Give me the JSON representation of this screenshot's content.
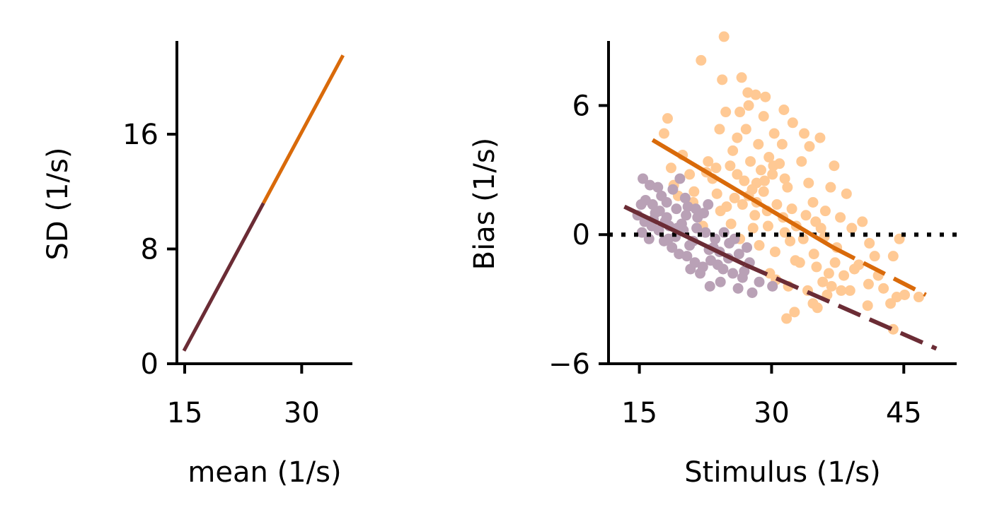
{
  "chart_data": [
    {
      "type": "line",
      "xlabel": "mean (1/s)",
      "ylabel": "SD (1/s)",
      "xlim": [
        14,
        36.5
      ],
      "ylim": [
        0,
        22.5
      ],
      "xticks": [
        15,
        30
      ],
      "yticks": [
        0,
        8,
        16
      ],
      "grid": false,
      "series": [
        {
          "color": "#6b2c35",
          "points": [
            [
              14.9,
              0.9
            ],
            [
              25.1,
              11.2
            ]
          ]
        },
        {
          "color": "#d96a0a",
          "points": [
            [
              25.1,
              11.2
            ],
            [
              35.3,
              21.5
            ]
          ]
        }
      ]
    },
    {
      "type": "scatter",
      "xlabel": "Stimulus (1/s)",
      "ylabel": "Bias (1/s)",
      "xlim": [
        11.5,
        51
      ],
      "ylim": [
        -6,
        9
      ],
      "xticks": [
        15,
        30,
        45
      ],
      "yticks": [
        -6,
        0,
        6
      ],
      "grid": false,
      "reference_line": {
        "y": 0,
        "style": "dotted",
        "color": "#000000"
      },
      "colors": {
        "light_orange": "#ffc994",
        "dark_orange": "#d96a0a",
        "light_purple": "#b9a1b6",
        "dark_purple": "#6b2c35"
      },
      "series": [
        {
          "color": "#ffc994",
          "points": [
            [
              24.6,
              9.2
            ],
            [
              22,
              8.1
            ],
            [
              24.4,
              7.2
            ],
            [
              26.6,
              7.3
            ],
            [
              27.3,
              6.6
            ],
            [
              28.2,
              6.5
            ],
            [
              29.3,
              6.4
            ],
            [
              24.8,
              5.7
            ],
            [
              26.4,
              5.7
            ],
            [
              27.4,
              6
            ],
            [
              29.1,
              5.5
            ],
            [
              31.4,
              5.8
            ],
            [
              18.2,
              5.4
            ],
            [
              24.1,
              4.9
            ],
            [
              27.1,
              4.9
            ],
            [
              30.3,
              4.7
            ],
            [
              32.4,
              5.2
            ],
            [
              33.7,
              4.7
            ],
            [
              35.5,
              4.5
            ],
            [
              17.8,
              4.7
            ],
            [
              26.1,
              4.5
            ],
            [
              28.5,
              4.2
            ],
            [
              31.2,
              4.2
            ],
            [
              34.3,
              4.1
            ],
            [
              19.9,
              3.7
            ],
            [
              22.8,
              3.4
            ],
            [
              23.7,
              3.1
            ],
            [
              25.3,
              3.2
            ],
            [
              27.6,
              3.4
            ],
            [
              30.2,
              3.2
            ],
            [
              33.4,
              3.4
            ],
            [
              37.1,
              3.2
            ],
            [
              18.6,
              3.1
            ],
            [
              20.7,
              2.8
            ],
            [
              23.3,
              2.6
            ],
            [
              26.1,
              2.8
            ],
            [
              28.3,
              2.4
            ],
            [
              29.2,
              2.5
            ],
            [
              31.5,
              2.6
            ],
            [
              34.2,
              2.4
            ],
            [
              36.7,
              2.2
            ],
            [
              18.9,
              2.3
            ],
            [
              21.2,
              2
            ],
            [
              23.8,
              1.9
            ],
            [
              25.8,
              1.7
            ],
            [
              27.4,
              1.8
            ],
            [
              29.1,
              2
            ],
            [
              30.6,
              1.4
            ],
            [
              32.3,
              1.2
            ],
            [
              34.7,
              1.5
            ],
            [
              36.1,
              1.1
            ],
            [
              38.5,
              1.9
            ],
            [
              21.1,
              1.5
            ],
            [
              24.2,
              1.1
            ],
            [
              26.7,
              1.4
            ],
            [
              28.1,
              0.9
            ],
            [
              29.5,
              1.1
            ],
            [
              31.3,
              0.8
            ],
            [
              32.8,
              0.4
            ],
            [
              35,
              0.6
            ],
            [
              37.8,
              0.8
            ],
            [
              40.3,
              0.6
            ],
            [
              22.2,
              0.4
            ],
            [
              25.4,
              0.5
            ],
            [
              27.9,
              0.3
            ],
            [
              29.6,
              0.4
            ],
            [
              31.5,
              0.1
            ],
            [
              33.6,
              -0.2
            ],
            [
              36,
              -0.1
            ],
            [
              39.1,
              0.3
            ],
            [
              41.1,
              -0.4
            ],
            [
              44.5,
              -0.2
            ],
            [
              28.6,
              -0.5
            ],
            [
              30.4,
              -0.8
            ],
            [
              32.7,
              -1.2
            ],
            [
              35.1,
              -1.5
            ],
            [
              37.2,
              -1.3
            ],
            [
              39.4,
              -1.6
            ],
            [
              41.7,
              -1
            ],
            [
              43.8,
              -1
            ],
            [
              30.5,
              -2.1
            ],
            [
              31.9,
              -2.4
            ],
            [
              34.1,
              -2.6
            ],
            [
              35.8,
              -2.2
            ],
            [
              37.9,
              -2.6
            ],
            [
              38.2,
              -1.9
            ],
            [
              41,
              -2.3
            ],
            [
              42.7,
              -2.5
            ],
            [
              32.6,
              -3.6
            ],
            [
              34.7,
              -3.2
            ],
            [
              35.2,
              -3.4
            ],
            [
              36.3,
              -2.8
            ],
            [
              38.9,
              -2.6
            ],
            [
              40.9,
              -3.3
            ],
            [
              43.5,
              -3.2
            ],
            [
              45.1,
              -2.8
            ],
            [
              31.7,
              -3.9
            ],
            [
              43.8,
              -4.4
            ],
            [
              36.5,
              -1.8
            ],
            [
              33.2,
              -1.3
            ],
            [
              29.8,
              -1.8
            ],
            [
              26.4,
              -0.2
            ],
            [
              24.9,
              1.3
            ],
            [
              27.8,
              2.1
            ],
            [
              30.9,
              3.3
            ],
            [
              22.6,
              2.9
            ],
            [
              19.4,
              1.8
            ],
            [
              33.9,
              0.9
            ],
            [
              35.6,
              0.3
            ],
            [
              37.4,
              -0.6
            ],
            [
              39.9,
              -1.4
            ],
            [
              42.1,
              -1.9
            ],
            [
              44.2,
              -2.9
            ],
            [
              46.7,
              -2.9
            ],
            [
              28.8,
              3
            ],
            [
              26.9,
              2.5
            ],
            [
              25.6,
              3.9
            ],
            [
              29.7,
              3.6
            ],
            [
              31.8,
              2.2
            ],
            [
              30.1,
              2.8
            ],
            [
              34.8,
              -0.9
            ],
            [
              36.8,
              -2.4
            ],
            [
              32.1,
              -0.3
            ],
            [
              28.3,
              1.5
            ]
          ]
        },
        {
          "color": "#b9a1b6",
          "points": [
            [
              15.4,
              2.6
            ],
            [
              16.2,
              2.3
            ],
            [
              17.1,
              2.2
            ],
            [
              18.8,
              2.1
            ],
            [
              19.6,
              2.6
            ],
            [
              20.2,
              1.7
            ],
            [
              15.7,
              1.6
            ],
            [
              16.5,
              1.4
            ],
            [
              17.3,
              1.1
            ],
            [
              18.1,
              1.5
            ],
            [
              19.2,
              1.2
            ],
            [
              20.5,
              1.3
            ],
            [
              21.6,
              0.8
            ],
            [
              22.3,
              1
            ],
            [
              14.8,
              0.9
            ],
            [
              15.6,
              0.6
            ],
            [
              16.4,
              0.4
            ],
            [
              17.2,
              0.2
            ],
            [
              18.4,
              0.4
            ],
            [
              19.1,
              -0.1
            ],
            [
              20,
              0.2
            ],
            [
              21.1,
              -0.3
            ],
            [
              22.5,
              0.1
            ],
            [
              23.6,
              -0.2
            ],
            [
              15.3,
              0.1
            ],
            [
              16.1,
              -0.2
            ],
            [
              17.8,
              -0.3
            ],
            [
              18.7,
              -0.6
            ],
            [
              19.5,
              -0.9
            ],
            [
              20.4,
              -1
            ],
            [
              21.3,
              -1.3
            ],
            [
              22.2,
              -1.5
            ],
            [
              23.1,
              -1.2
            ],
            [
              24.1,
              -0.8
            ],
            [
              25.2,
              -0.4
            ],
            [
              26.3,
              -0.9
            ],
            [
              20.8,
              -1.6
            ],
            [
              21.9,
              -1.8
            ],
            [
              24.5,
              -1.6
            ],
            [
              25.6,
              -1.8
            ],
            [
              26.7,
              -2
            ],
            [
              27.5,
              -1.3
            ],
            [
              23,
              -2.4
            ],
            [
              24.2,
              -2.2
            ],
            [
              26.2,
              -2.5
            ],
            [
              27.8,
              -2.7
            ],
            [
              28.6,
              -2.2
            ],
            [
              30.1,
              -2.4
            ],
            [
              18.1,
              0.8
            ],
            [
              19.8,
              0.5
            ],
            [
              21.5,
              0.3
            ],
            [
              23.4,
              -0.6
            ],
            [
              25.8,
              -0.2
            ],
            [
              17.5,
              1.8
            ],
            [
              16.8,
              1.0
            ],
            [
              15.2,
              1.4
            ],
            [
              22.8,
              1.4
            ],
            [
              21.4,
              1.2
            ],
            [
              19.3,
              0.3
            ],
            [
              20.7,
              -0.5
            ],
            [
              23.9,
              -1.4
            ],
            [
              22.9,
              -0.7
            ],
            [
              24.6,
              0.1
            ],
            [
              18.3,
              -0.2
            ],
            [
              16.6,
              0.7
            ],
            [
              17.9,
              0.6
            ],
            [
              20.3,
              0.9
            ],
            [
              27.2,
              -0.6
            ],
            [
              26.9,
              -1.7
            ],
            [
              25.1,
              -1.1
            ]
          ]
        }
      ],
      "fit_lines": [
        {
          "name": "orange-fit",
          "color": "#d96a0a",
          "solid": [
            [
              16.5,
              4.4
            ],
            [
              37,
              -0.6
            ]
          ],
          "dashed": [
            [
              37,
              -0.6
            ],
            [
              47.5,
              -2.8
            ]
          ]
        },
        {
          "name": "purple-fit",
          "color": "#6b2c35",
          "solid": [
            [
              13.3,
              1.3
            ],
            [
              27,
              -1.4
            ]
          ],
          "dashed": [
            [
              27,
              -1.4
            ],
            [
              48.7,
              -5.3
            ]
          ]
        }
      ]
    }
  ]
}
